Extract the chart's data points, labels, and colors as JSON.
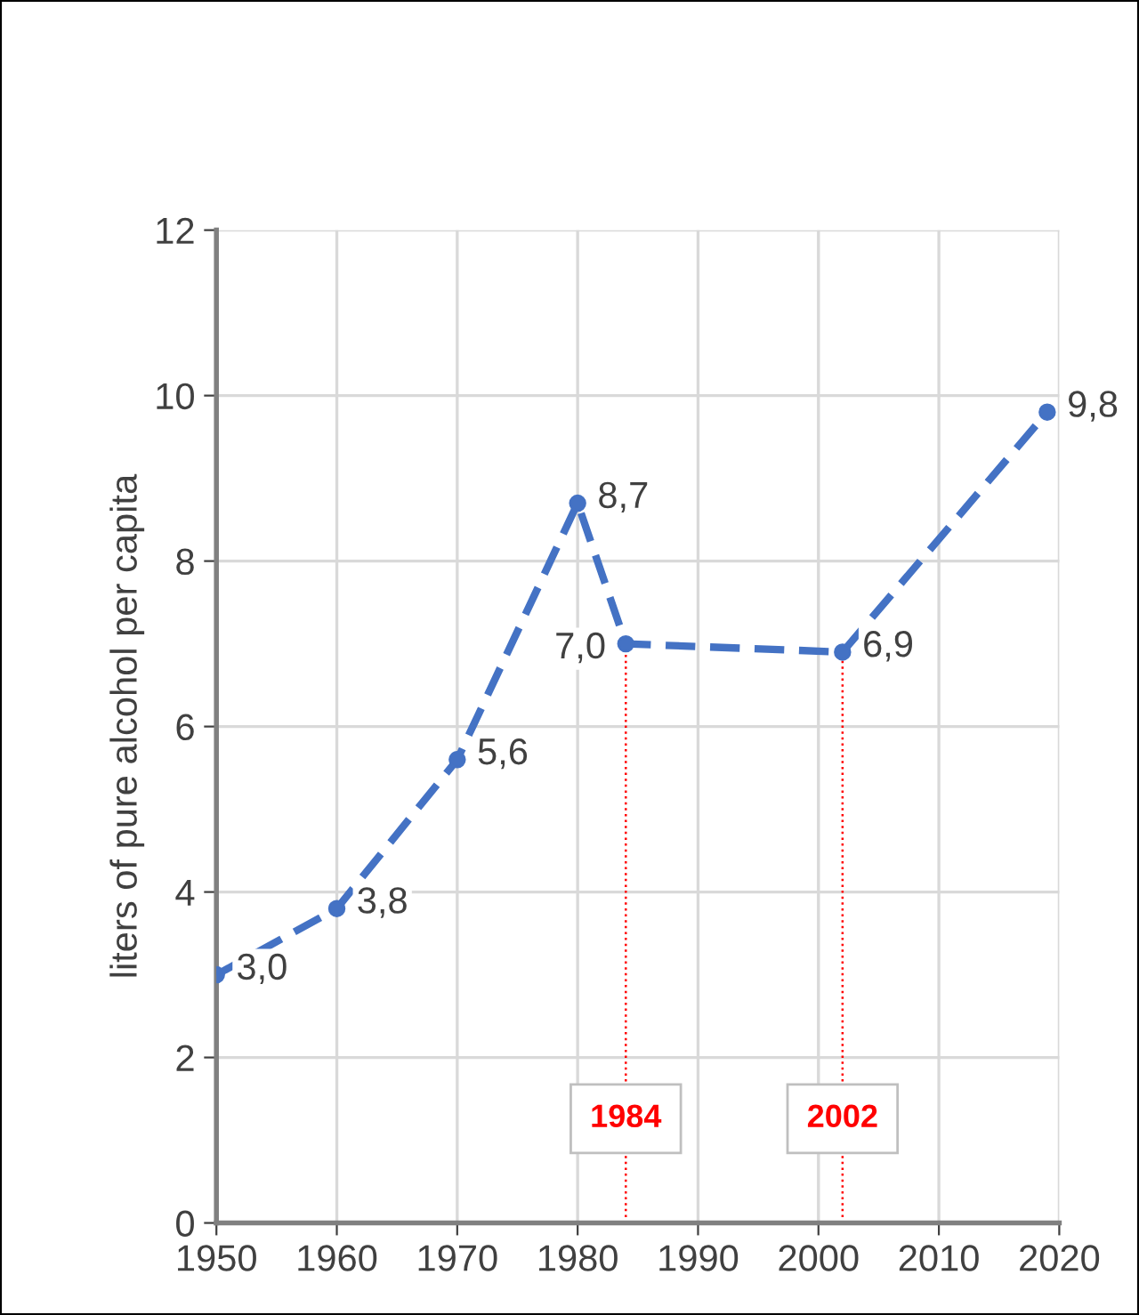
{
  "chart_data": {
    "type": "line",
    "ylabel": "liters of pure alcohol per capita",
    "x": [
      1950,
      1960,
      1970,
      1980,
      1984,
      2002,
      2019
    ],
    "series": [
      {
        "color": "#4472c4",
        "values": [
          3.0,
          3.8,
          5.6,
          8.7,
          7.0,
          6.9,
          9.8
        ],
        "value_labels": [
          "3,0",
          "3,8",
          "5,6",
          "8,7",
          "7,0",
          "6,9",
          "9,8"
        ]
      }
    ],
    "xlim": [
      1950,
      2020
    ],
    "xticks": [
      1950,
      1960,
      1970,
      1980,
      1990,
      2000,
      2010,
      2020
    ],
    "ylim": [
      0,
      12
    ],
    "yticks": [
      0,
      2,
      4,
      6,
      8,
      10,
      12
    ],
    "grid": true,
    "marker": "circle",
    "line_style": "dashed",
    "ref_lines": [
      {
        "axis": "x",
        "value": 1984,
        "label": "1984",
        "color": "#ff0000",
        "line_style": "dotted"
      },
      {
        "axis": "x",
        "value": 2002,
        "label": "2002",
        "color": "#ff0000",
        "line_style": "dotted"
      }
    ]
  }
}
